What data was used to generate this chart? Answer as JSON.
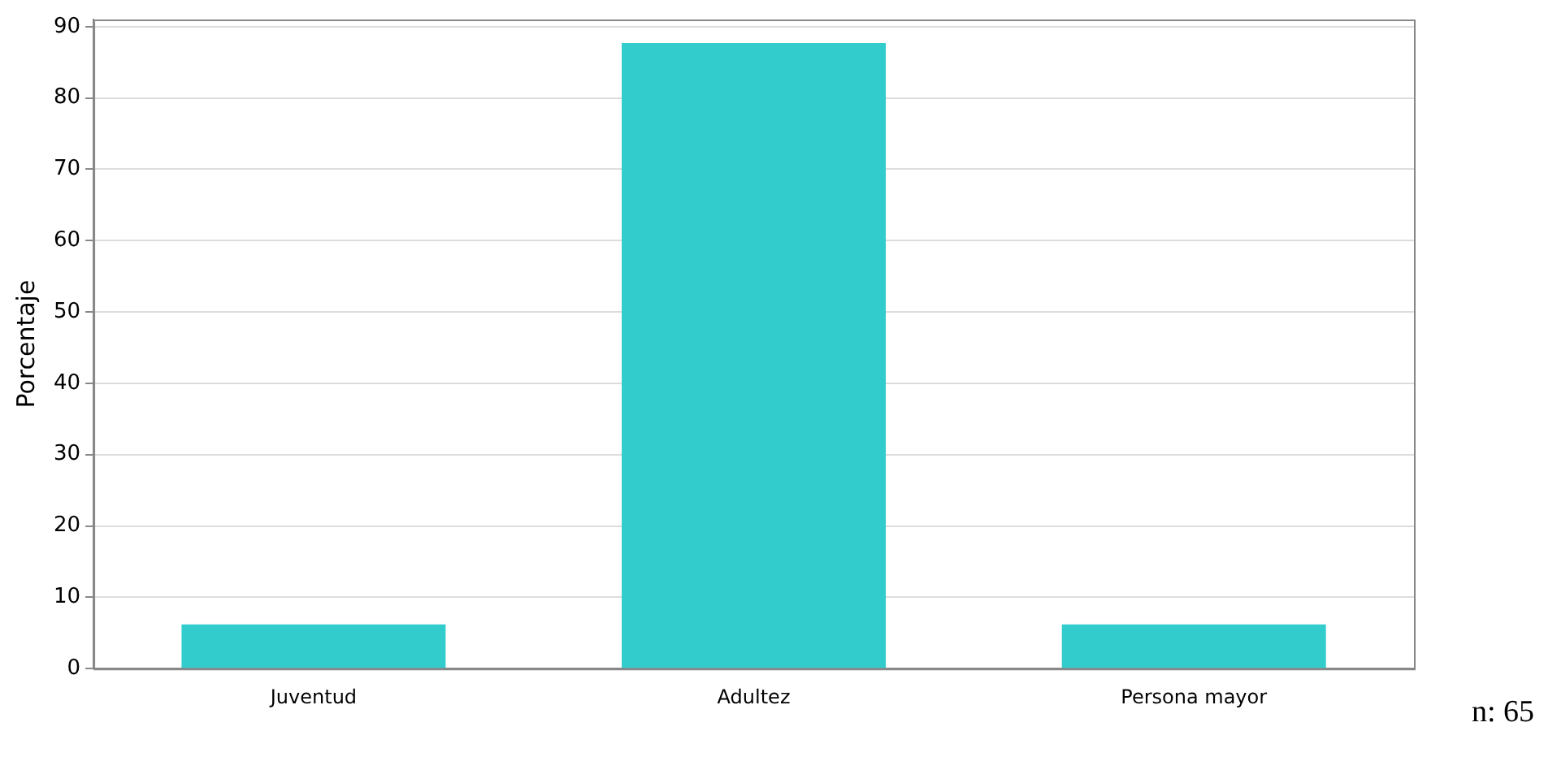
{
  "chart_data": {
    "type": "bar",
    "ylabel": "Porcentaje",
    "categories": [
      "Juventud",
      "Adultez",
      "Persona mayor"
    ],
    "values": [
      6.2,
      87.7,
      6.2
    ],
    "color": "#33cccc",
    "ylim": [
      0,
      91
    ],
    "yticks": [
      0,
      10,
      20,
      30,
      40,
      50,
      60,
      70,
      80,
      90
    ],
    "grid": "y",
    "legend": false,
    "annotations": [
      "n: 65"
    ]
  }
}
